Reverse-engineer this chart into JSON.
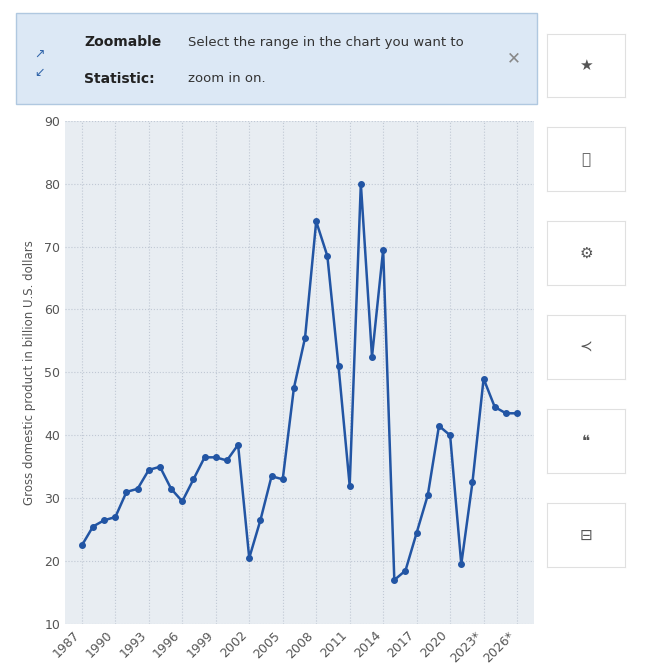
{
  "gdp_data": {
    "1987": 22.5,
    "1988": 25.5,
    "1989": 26.5,
    "1990": 27.0,
    "1991": 31.0,
    "1992": 31.5,
    "1993": 34.5,
    "1994": 35.0,
    "1995": 31.5,
    "1996": 29.5,
    "1997": 33.0,
    "1998": 36.5,
    "1999": 36.5,
    "2000": 36.0,
    "2001": 38.5,
    "2002": 20.5,
    "2003": 26.5,
    "2004": 33.5,
    "2005": 33.0,
    "2006": 47.5,
    "2007": 55.5,
    "2008": 74.0,
    "2009": 68.5,
    "2010": 51.0,
    "2011": 32.0,
    "2012": 80.0,
    "2013": 52.5,
    "2014": 69.5,
    "2015": 17.0,
    "2016": 18.5,
    "2017": 24.5,
    "2018": 30.5,
    "2019": 41.5,
    "2020": 40.0,
    "2021": 19.5,
    "2022": 32.5,
    "2023": 49.0,
    "2024": 44.5,
    "2025": 43.5,
    "2026": 43.5
  },
  "line_color": "#2255a4",
  "marker_size": 4,
  "line_width": 1.8,
  "ylabel": "Gross domestic product in billion U.S. dollars",
  "ylim": [
    10,
    90
  ],
  "yticks": [
    10,
    20,
    30,
    40,
    50,
    60,
    70,
    80,
    90
  ],
  "xtick_labels": [
    "1987",
    "1990",
    "1993",
    "1996",
    "1999",
    "2002",
    "2005",
    "2008",
    "2011",
    "2014",
    "2017",
    "2020",
    "2023*",
    "2026*"
  ],
  "xtick_positions": [
    1987,
    1990,
    1993,
    1996,
    1999,
    2002,
    2005,
    2008,
    2011,
    2014,
    2017,
    2020,
    2023,
    2026
  ],
  "plot_bg_color": "#e8edf2",
  "fig_bg_color": "#ffffff",
  "grid_color": "#c0c8d4",
  "info_box_bg": "#dce8f5",
  "info_box_border": "#b0c8e0",
  "right_panel_bg": "#f5f5f5",
  "right_panel_icon_bg": "#ffffff",
  "tick_color": "#555555",
  "tick_fontsize": 9,
  "ylabel_fontsize": 8.5,
  "info_bold_text": "Zoomable\nStatistic:",
  "info_desc_text": "Select the range in the chart you want to\nzoom in on.",
  "icon_symbols": [
    "★",
    "🔔",
    "⚙",
    "<",
    "““",
    "🖨"
  ],
  "xlim_left": 1985.5,
  "xlim_right": 2027.5
}
